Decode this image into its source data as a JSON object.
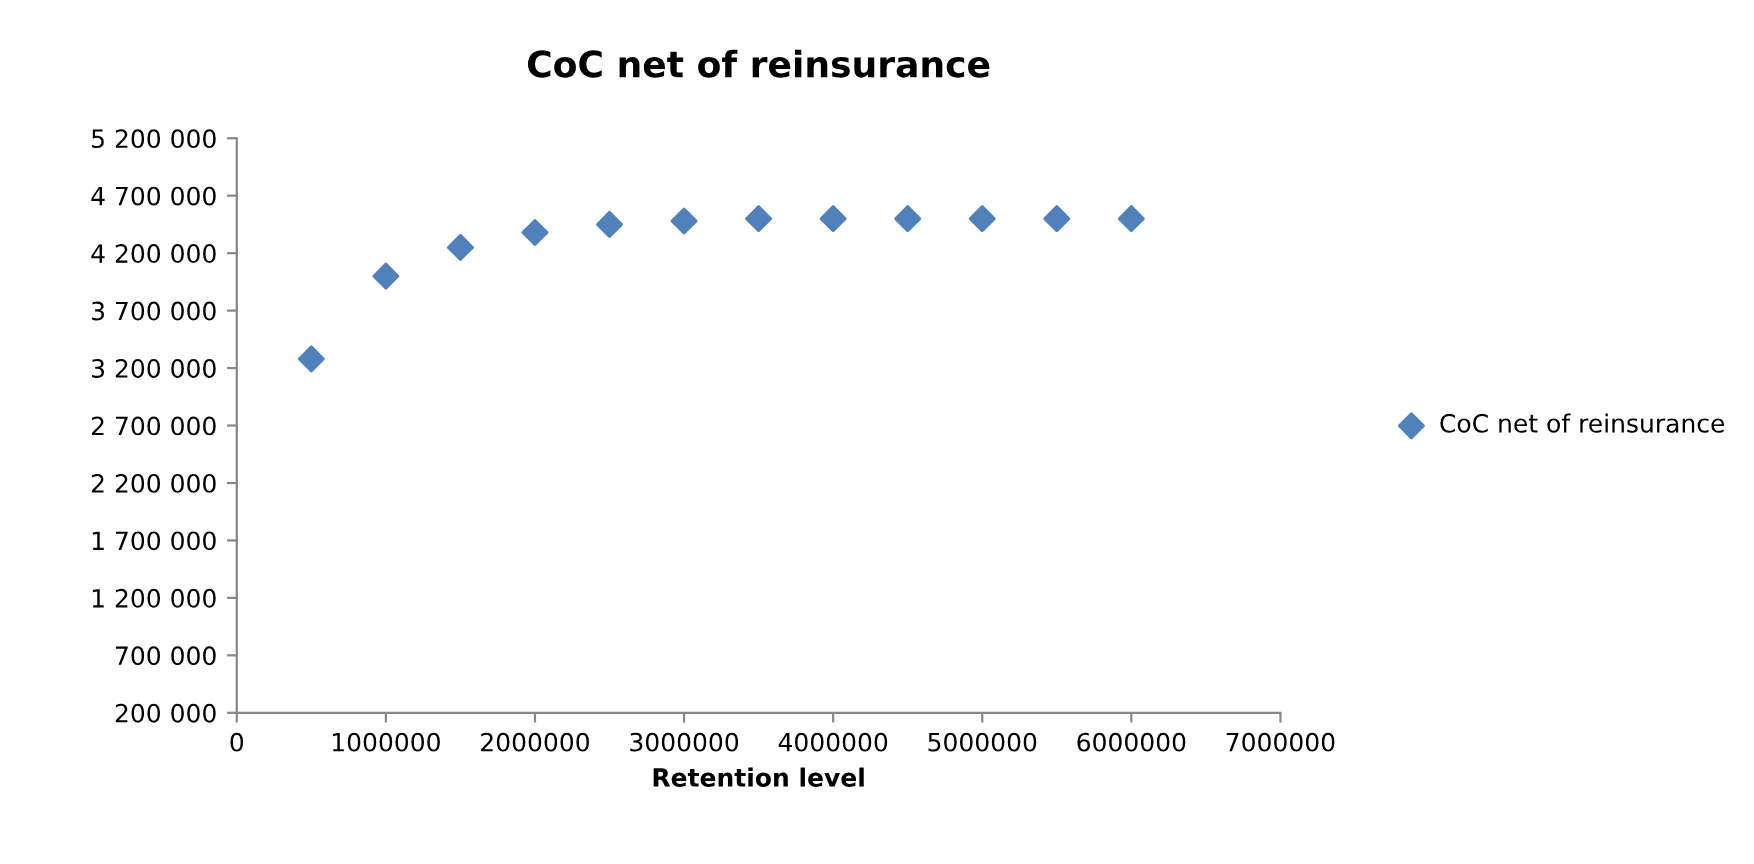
{
  "chart_data": {
    "type": "scatter",
    "title": "CoC net of reinsurance",
    "xlabel": "Retention level",
    "series": [
      {
        "name": "CoC net of reinsurance",
        "color": "#4f81bd",
        "x": [
          500000,
          1000000,
          1500000,
          2000000,
          2500000,
          3000000,
          3500000,
          4000000,
          4500000,
          5000000,
          5500000,
          6000000
        ],
        "values": [
          3280000,
          4000000,
          4250000,
          4380000,
          4450000,
          4480000,
          4500000,
          4500000,
          4500000,
          4500000,
          4500000,
          4500000
        ]
      }
    ],
    "xlim": [
      0,
      7000000
    ],
    "xticks": [
      0,
      1000000,
      2000000,
      3000000,
      4000000,
      5000000,
      6000000,
      7000000
    ],
    "ylim": [
      200000,
      5200000
    ],
    "yticks": [
      {
        "value": 200000,
        "label": "200 000"
      },
      {
        "value": 700000,
        "label": "700 000"
      },
      {
        "value": 1200000,
        "label": "1 200 000"
      },
      {
        "value": 1700000,
        "label": "1 700 000"
      },
      {
        "value": 2200000,
        "label": "2 200 000"
      },
      {
        "value": 2700000,
        "label": "2 700 000"
      },
      {
        "value": 3200000,
        "label": "3 200 000"
      },
      {
        "value": 3700000,
        "label": "3 700 000"
      },
      {
        "value": 4200000,
        "label": "4 200 000"
      },
      {
        "value": 4700000,
        "label": "4 700 000"
      },
      {
        "value": 5200000,
        "label": "5 200 000"
      }
    ],
    "marker": "diamond",
    "legend": "right",
    "grid": false
  }
}
